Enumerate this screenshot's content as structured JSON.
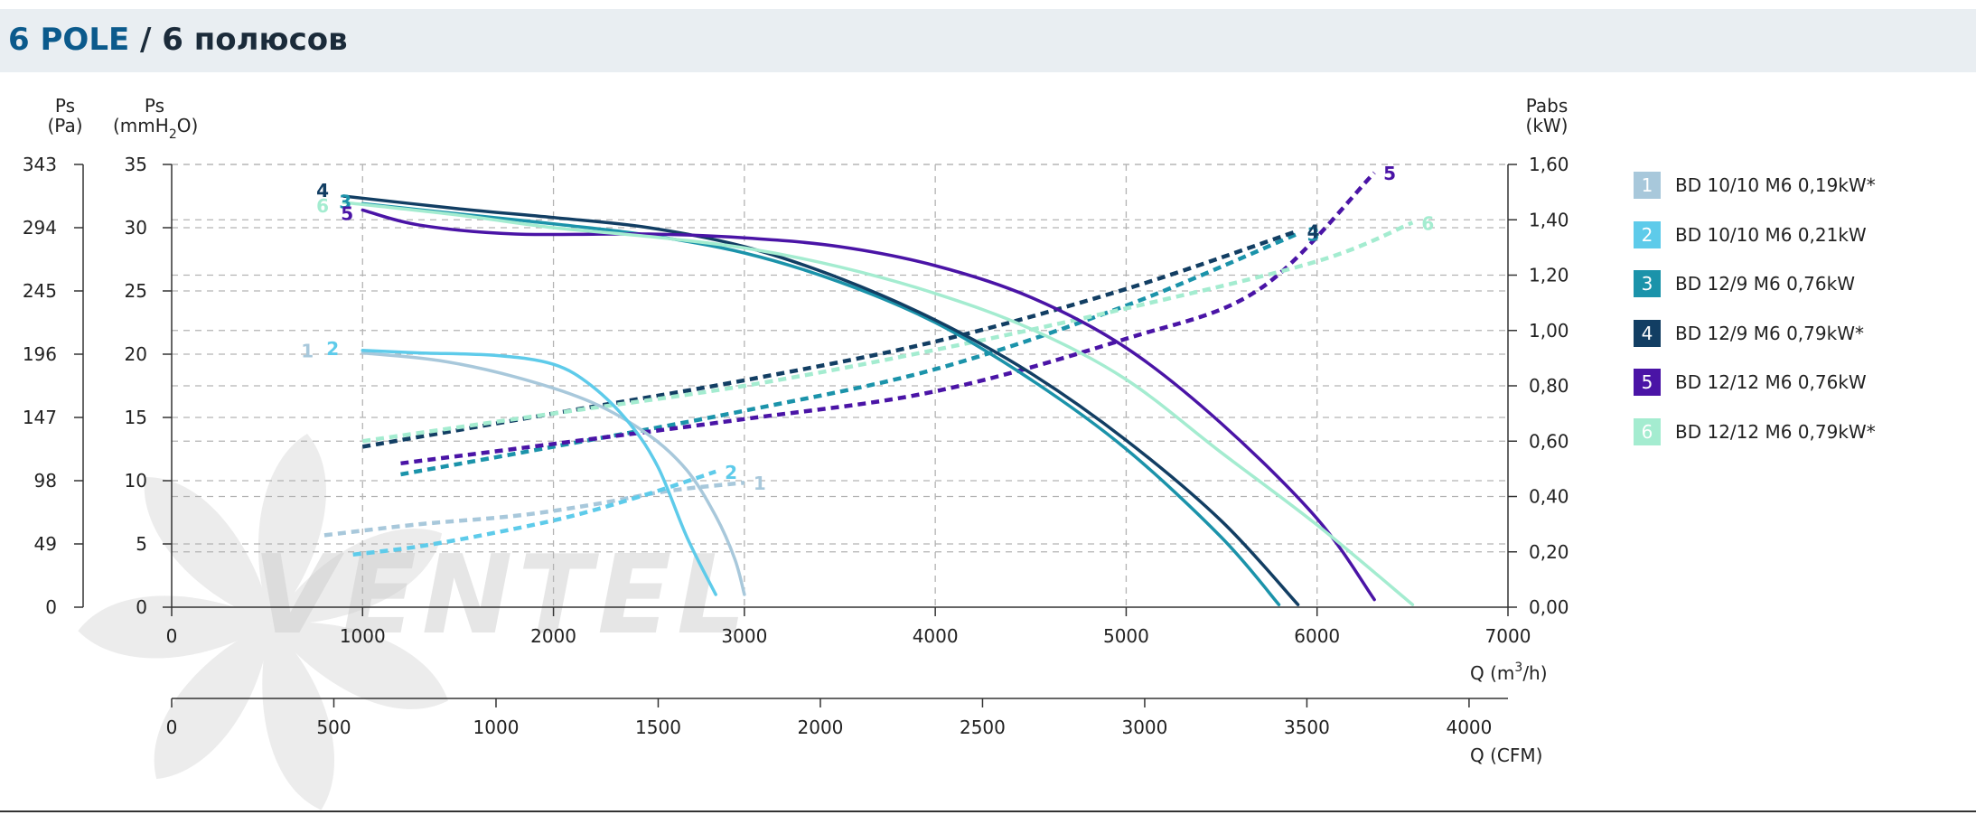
{
  "title": {
    "main": "6 POLE",
    "sub": " / 6 полюсов"
  },
  "colors": {
    "c1": "#a8c8db",
    "c2": "#5ecbea",
    "c3": "#1b93aa",
    "c4": "#123e63",
    "c5": "#4a14a6",
    "c6": "#a4ecd0",
    "grid": "#b3b3b3",
    "axis": "#333333",
    "watermark": "#c9c9c9"
  },
  "watermark": "VENTEL",
  "chart_data": {
    "type": "line",
    "axes": {
      "left_pa": {
        "label_line1": "Ps",
        "label_line2": "(Pa)",
        "ticks": [
          "0",
          "49",
          "98",
          "147",
          "196",
          "245",
          "294",
          "343"
        ]
      },
      "left_mmh2o": {
        "label_line1": "Ps",
        "label_line2": "(mmH",
        "label_sub": "2",
        "label_end": "O)",
        "ticks": [
          "0",
          "5",
          "10",
          "15",
          "20",
          "25",
          "30",
          "35"
        ],
        "ylim": [
          0,
          35
        ]
      },
      "right_kw": {
        "label_line1": "Pabs",
        "label_line2": "(kW)",
        "ticks": [
          "0,00",
          "0,20",
          "0,40",
          "0,60",
          "0,80",
          "1,00",
          "1,20",
          "1,40",
          "1,60"
        ],
        "ylim": [
          0,
          1.6
        ]
      },
      "x_m3h": {
        "label": "Q (m",
        "label_sup": "3",
        "label_end": "/h)",
        "ticks": [
          "0",
          "1000",
          "2000",
          "3000",
          "4000",
          "5000",
          "6000",
          "7000"
        ],
        "xlim": [
          0,
          7000
        ]
      },
      "x_cfm": {
        "label": "Q (CFM)",
        "ticks": [
          "0",
          "500",
          "1000",
          "1500",
          "2000",
          "2500",
          "3000",
          "3500",
          "4000"
        ],
        "xlim": [
          0,
          4120
        ]
      }
    },
    "series": [
      {
        "id": "1",
        "name": "BD 10/10 M6 0,19kW*",
        "color": "#a8c8db",
        "pressure": [
          [
            1000,
            20.1
          ],
          [
            1400,
            19.5
          ],
          [
            1800,
            18.2
          ],
          [
            2200,
            16.2
          ],
          [
            2500,
            13.6
          ],
          [
            2700,
            10.8
          ],
          [
            2850,
            7.2
          ],
          [
            2950,
            3.8
          ],
          [
            3000,
            1.0
          ]
        ],
        "power": [
          [
            800,
            0.26
          ],
          [
            1300,
            0.3
          ],
          [
            1800,
            0.33
          ],
          [
            2200,
            0.37
          ],
          [
            2600,
            0.42
          ],
          [
            3000,
            0.45
          ]
        ]
      },
      {
        "id": "2",
        "name": "BD 10/10 M6 0,21kW",
        "color": "#5ecbea",
        "pressure": [
          [
            1000,
            20.3
          ],
          [
            1300,
            20.1
          ],
          [
            1700,
            19.9
          ],
          [
            2000,
            19.2
          ],
          [
            2200,
            17.5
          ],
          [
            2400,
            14.5
          ],
          [
            2550,
            11.0
          ],
          [
            2700,
            5.5
          ],
          [
            2850,
            1.0
          ]
        ],
        "power": [
          [
            950,
            0.19
          ],
          [
            1300,
            0.22
          ],
          [
            1700,
            0.27
          ],
          [
            2100,
            0.33
          ],
          [
            2500,
            0.41
          ],
          [
            2850,
            0.49
          ]
        ]
      },
      {
        "id": "3",
        "name": "BD 12/9 M6 0,76kW",
        "color": "#1b93aa",
        "pressure": [
          [
            1000,
            31.9
          ],
          [
            1500,
            31.1
          ],
          [
            2000,
            30.3
          ],
          [
            2500,
            29.4
          ],
          [
            3000,
            28.0
          ],
          [
            3500,
            25.7
          ],
          [
            4000,
            22.5
          ],
          [
            4500,
            18.0
          ],
          [
            5000,
            12.5
          ],
          [
            5500,
            5.5
          ],
          [
            5800,
            0.2
          ]
        ],
        "power": [
          [
            1200,
            0.48
          ],
          [
            2000,
            0.58
          ],
          [
            3000,
            0.71
          ],
          [
            4000,
            0.86
          ],
          [
            5000,
            1.09
          ],
          [
            5900,
            1.35
          ]
        ]
      },
      {
        "id": "4",
        "name": "BD 12/9 M6 0,79kW*",
        "color": "#123e63",
        "pressure": [
          [
            900,
            32.5
          ],
          [
            1500,
            31.5
          ],
          [
            2000,
            30.8
          ],
          [
            2500,
            30.0
          ],
          [
            3000,
            28.5
          ],
          [
            3500,
            26.0
          ],
          [
            4000,
            22.7
          ],
          [
            4500,
            18.5
          ],
          [
            5000,
            13.2
          ],
          [
            5500,
            6.8
          ],
          [
            5900,
            0.2
          ]
        ],
        "power": [
          [
            1000,
            0.58
          ],
          [
            2000,
            0.7
          ],
          [
            3000,
            0.82
          ],
          [
            4000,
            0.96
          ],
          [
            5000,
            1.15
          ],
          [
            5900,
            1.36
          ]
        ]
      },
      {
        "id": "5",
        "name": "BD 12/12 M6 0,76kW",
        "color": "#4a14a6",
        "pressure": [
          [
            1000,
            31.4
          ],
          [
            1300,
            30.2
          ],
          [
            1800,
            29.5
          ],
          [
            2500,
            29.5
          ],
          [
            3000,
            29.2
          ],
          [
            3500,
            28.5
          ],
          [
            4000,
            27.0
          ],
          [
            4500,
            24.5
          ],
          [
            5000,
            20.5
          ],
          [
            5500,
            14.5
          ],
          [
            6000,
            7.0
          ],
          [
            6300,
            0.6
          ]
        ],
        "power": [
          [
            1200,
            0.52
          ],
          [
            2000,
            0.59
          ],
          [
            3000,
            0.68
          ],
          [
            4000,
            0.78
          ],
          [
            5000,
            0.97
          ],
          [
            5700,
            1.15
          ],
          [
            6300,
            1.57
          ]
        ]
      },
      {
        "id": "6",
        "name": "BD 12/12 M6 0,79kW*",
        "color": "#a4ecd0",
        "pressure": [
          [
            900,
            32.0
          ],
          [
            1500,
            31.0
          ],
          [
            2000,
            30.0
          ],
          [
            2500,
            29.3
          ],
          [
            3000,
            28.4
          ],
          [
            3500,
            26.9
          ],
          [
            4000,
            24.8
          ],
          [
            4500,
            22.0
          ],
          [
            5000,
            18.0
          ],
          [
            5500,
            12.2
          ],
          [
            6000,
            6.5
          ],
          [
            6500,
            0.2
          ]
        ],
        "power": [
          [
            1000,
            0.6
          ],
          [
            2000,
            0.7
          ],
          [
            3000,
            0.8
          ],
          [
            4000,
            0.93
          ],
          [
            5000,
            1.08
          ],
          [
            6000,
            1.25
          ],
          [
            6500,
            1.39
          ]
        ]
      }
    ]
  }
}
